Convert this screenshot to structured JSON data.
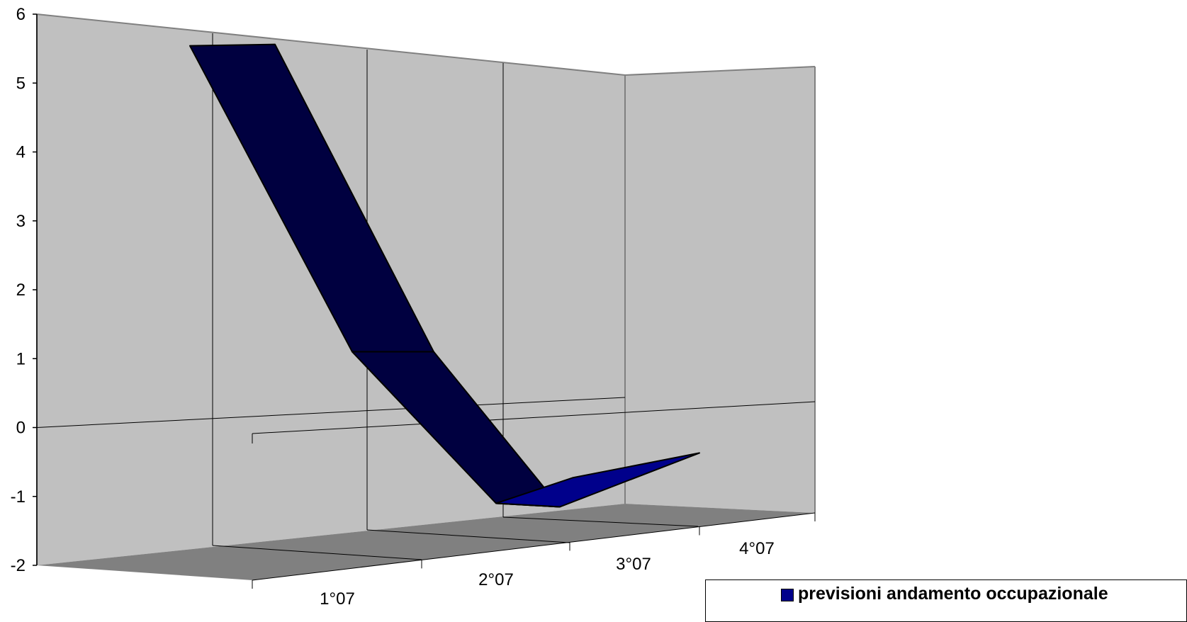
{
  "chart_data": {
    "type": "area",
    "three_d": true,
    "categories": [
      "1°07",
      "2°07",
      "3°07",
      "4°07"
    ],
    "series": [
      {
        "name": "previsioni andamento occupazionale",
        "values": [
          5.5,
          1.1,
          -1.1,
          -0.4
        ]
      }
    ],
    "y_ticks": [
      "6",
      "5",
      "4",
      "3",
      "2",
      "1",
      "0",
      "-1",
      "-2"
    ],
    "ylim": [
      -2,
      6
    ],
    "grid": true,
    "legend_position": "bottom-right",
    "colors": {
      "wall": "#c0c0c0",
      "floor": "#808080",
      "series_top": "#000040",
      "series_front": "#00008b"
    }
  }
}
